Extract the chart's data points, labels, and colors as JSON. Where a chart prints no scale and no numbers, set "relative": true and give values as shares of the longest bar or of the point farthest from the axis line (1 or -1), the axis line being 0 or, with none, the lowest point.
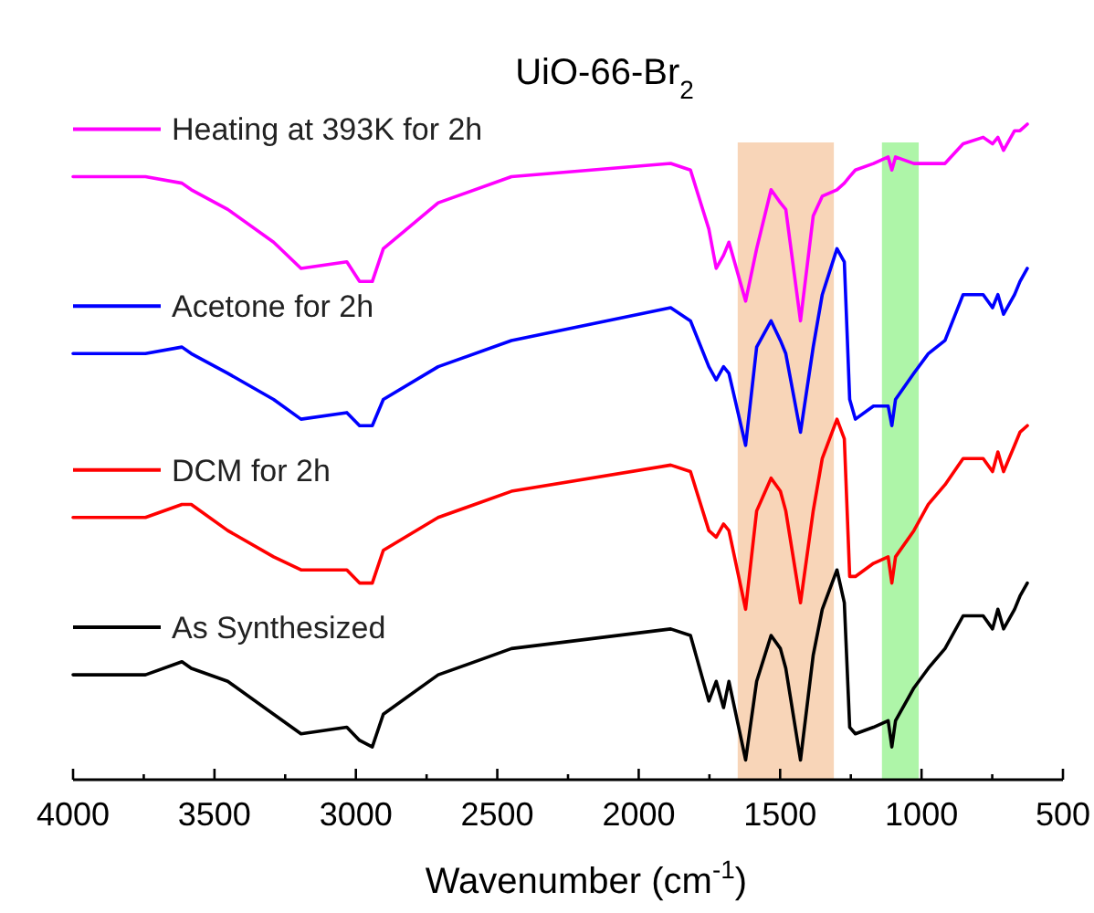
{
  "chart_data": {
    "type": "line",
    "title": "UiO-66-Br$_{2}$",
    "xlabel": "Wavenumber (cm$^{-1}$)",
    "relative": true,
    "legend": "left",
    "grid": false,
    "xlim": [
      4000,
      500
    ],
    "xticks": [
      4000,
      {
        "value": 3750,
        "label": null
      },
      3500,
      {
        "value": 3250,
        "label": null
      },
      3000,
      {
        "value": 2750,
        "label": null
      },
      2500,
      {
        "value": 2250,
        "label": null
      },
      2000,
      {
        "value": 1750,
        "label": null
      },
      1500,
      {
        "value": 1250,
        "label": null
      },
      1000,
      {
        "value": 750,
        "label": null
      },
      500
    ],
    "x": [
      4000,
      3744,
      3615,
      3582,
      3453,
      3291,
      3194,
      3032,
      2987,
      2942,
      2903,
      2709,
      2450,
      1887,
      1817,
      1752,
      1726,
      1700,
      1681,
      1622,
      1583,
      1532,
      1499,
      1480,
      1428,
      1383,
      1351,
      1299,
      1273,
      1254,
      1234,
      1170,
      1118,
      1105,
      1092,
      1027,
      976,
      917,
      853,
      782,
      749,
      730,
      710,
      671,
      652,
      626
    ],
    "bands": [
      {
        "axis": "x",
        "from": 1650,
        "to": 1310,
        "color": "#f8d5b8"
      },
      {
        "axis": "x",
        "from": 1140,
        "to": 1010,
        "color": "#aef5a8"
      }
    ],
    "series": [
      {
        "name": "Heating at 393K for 2h",
        "color": "#ff00ff",
        "values": [
          0.92,
          0.92,
          0.91,
          0.9,
          0.87,
          0.82,
          0.78,
          0.79,
          0.76,
          0.76,
          0.81,
          0.88,
          0.92,
          0.94,
          0.93,
          0.84,
          0.78,
          0.8,
          0.82,
          0.73,
          0.81,
          0.9,
          0.88,
          0.87,
          0.7,
          0.86,
          0.89,
          0.9,
          0.91,
          0.92,
          0.93,
          0.94,
          0.95,
          0.93,
          0.95,
          0.94,
          0.94,
          0.94,
          0.97,
          0.98,
          0.97,
          0.98,
          0.96,
          0.99,
          0.99,
          1
        ]
      },
      {
        "name": "Acetone for 2h",
        "color": "#0000ff",
        "values": [
          0.65,
          0.65,
          0.66,
          0.65,
          0.62,
          0.58,
          0.55,
          0.56,
          0.54,
          0.54,
          0.58,
          0.63,
          0.67,
          0.72,
          0.7,
          0.63,
          0.61,
          0.63,
          0.62,
          0.51,
          0.66,
          0.7,
          0.67,
          0.65,
          0.53,
          0.66,
          0.74,
          0.81,
          0.79,
          0.58,
          0.55,
          0.57,
          0.57,
          0.54,
          0.58,
          0.62,
          0.65,
          0.67,
          0.74,
          0.74,
          0.72,
          0.74,
          0.71,
          0.74,
          0.76,
          0.78
        ]
      },
      {
        "name": "DCM for 2h",
        "color": "#ff0000",
        "values": [
          0.4,
          0.4,
          0.42,
          0.42,
          0.38,
          0.34,
          0.32,
          0.32,
          0.3,
          0.3,
          0.35,
          0.4,
          0.44,
          0.48,
          0.47,
          0.38,
          0.37,
          0.39,
          0.38,
          0.26,
          0.41,
          0.46,
          0.44,
          0.41,
          0.27,
          0.41,
          0.49,
          0.55,
          0.52,
          0.31,
          0.31,
          0.33,
          0.34,
          0.3,
          0.34,
          0.38,
          0.42,
          0.45,
          0.49,
          0.49,
          0.47,
          0.5,
          0.47,
          0.51,
          0.53,
          0.54
        ]
      },
      {
        "name": "As Synthesized",
        "color": "#000000",
        "values": [
          0.16,
          0.16,
          0.18,
          0.17,
          0.15,
          0.1,
          0.07,
          0.08,
          0.06,
          0.05,
          0.1,
          0.16,
          0.2,
          0.23,
          0.22,
          0.12,
          0.15,
          0.11,
          0.15,
          0.03,
          0.15,
          0.22,
          0.2,
          0.17,
          0.03,
          0.19,
          0.26,
          0.32,
          0.27,
          0.08,
          0.07,
          0.08,
          0.09,
          0.05,
          0.09,
          0.14,
          0.17,
          0.2,
          0.25,
          0.25,
          0.23,
          0.26,
          0.23,
          0.26,
          0.28,
          0.3
        ]
      }
    ]
  }
}
